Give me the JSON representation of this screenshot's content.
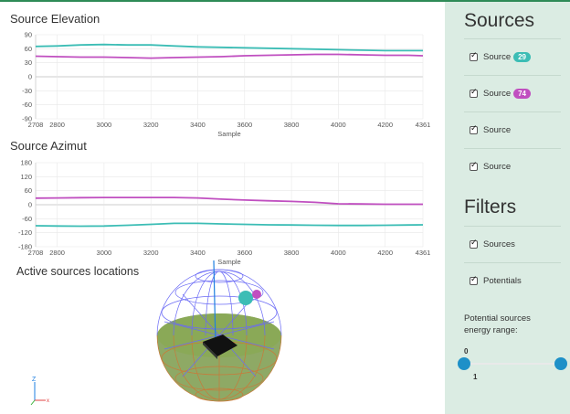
{
  "elevation_chart": {
    "title": "Source Elevation",
    "xlabel": "Sample",
    "y_ticks": [
      "90",
      "60",
      "30",
      "0",
      "-30",
      "-60",
      "-90"
    ],
    "x_ticks": [
      "2708",
      "2800",
      "3000",
      "3200",
      "3400",
      "3600",
      "3800",
      "4000",
      "4200",
      "4361"
    ]
  },
  "azimuth_chart": {
    "title": "Source Azimut",
    "xlabel": "Sample",
    "y_ticks": [
      "180",
      "120",
      "60",
      "0",
      "-60",
      "-120",
      "-180"
    ],
    "x_ticks": [
      "2708",
      "2800",
      "3000",
      "3200",
      "3400",
      "3600",
      "3800",
      "4000",
      "4200",
      "4361"
    ]
  },
  "locations": {
    "title": "Active sources locations"
  },
  "axes_widget": {
    "z": "Z",
    "x": "x"
  },
  "sidebar": {
    "sources_heading": "Sources",
    "sources": [
      {
        "label": "Source",
        "badge": "29",
        "badge_color": "#3cbdb5",
        "checked": true
      },
      {
        "label": "Source",
        "badge": "74",
        "badge_color": "#c04fc0",
        "checked": true
      },
      {
        "label": "Source",
        "badge": "",
        "checked": true
      },
      {
        "label": "Source",
        "badge": "",
        "checked": true
      }
    ],
    "filters_heading": "Filters",
    "filters": [
      {
        "label": "Sources",
        "checked": true
      },
      {
        "label": "Potentials",
        "checked": true
      }
    ],
    "range_label": "Potential sources energy range:",
    "range_min": "0",
    "range_max": "1",
    "range_low_value": 0,
    "range_high_value": 1
  },
  "chart_data": [
    {
      "type": "line",
      "title": "Source Elevation",
      "xlabel": "Sample",
      "ylabel": "",
      "xlim": [
        2708,
        4361
      ],
      "ylim": [
        -90,
        90
      ],
      "series": [
        {
          "color": "#3cbdb5",
          "x": [
            2708,
            2800,
            2900,
            3000,
            3100,
            3200,
            3300,
            3400,
            3500,
            3600,
            3700,
            3800,
            3900,
            4000,
            4100,
            4200,
            4300,
            4361
          ],
          "values": [
            65,
            66,
            68,
            69,
            68,
            68,
            66,
            64,
            63,
            62,
            61,
            60,
            59,
            58,
            57,
            56,
            56,
            56
          ]
        },
        {
          "color": "#c04fc0",
          "x": [
            2708,
            2800,
            2900,
            3000,
            3100,
            3200,
            3300,
            3400,
            3500,
            3600,
            3700,
            3800,
            3900,
            4000,
            4100,
            4200,
            4300,
            4361
          ],
          "values": [
            44,
            43,
            42,
            42,
            41,
            40,
            41,
            42,
            43,
            45,
            46,
            47,
            48,
            48,
            47,
            46,
            46,
            45
          ]
        }
      ]
    },
    {
      "type": "line",
      "title": "Source Azimut",
      "xlabel": "Sample",
      "ylabel": "",
      "xlim": [
        2708,
        4361
      ],
      "ylim": [
        -180,
        180
      ],
      "series": [
        {
          "color": "#c04fc0",
          "x": [
            2708,
            2800,
            2900,
            3000,
            3100,
            3200,
            3300,
            3400,
            3500,
            3600,
            3700,
            3800,
            3900,
            4000,
            4100,
            4200,
            4300,
            4361
          ],
          "values": [
            28,
            29,
            30,
            31,
            31,
            31,
            31,
            29,
            24,
            20,
            17,
            14,
            10,
            4,
            3,
            2,
            2,
            2
          ]
        },
        {
          "color": "#3cbdb5",
          "x": [
            2708,
            2800,
            2900,
            3000,
            3100,
            3200,
            3300,
            3400,
            3500,
            3600,
            3700,
            3800,
            3900,
            4000,
            4100,
            4200,
            4300,
            4361
          ],
          "values": [
            -90,
            -91,
            -92,
            -91,
            -88,
            -84,
            -80,
            -80,
            -82,
            -84,
            -86,
            -87,
            -88,
            -89,
            -89,
            -88,
            -87,
            -86
          ]
        }
      ]
    }
  ]
}
